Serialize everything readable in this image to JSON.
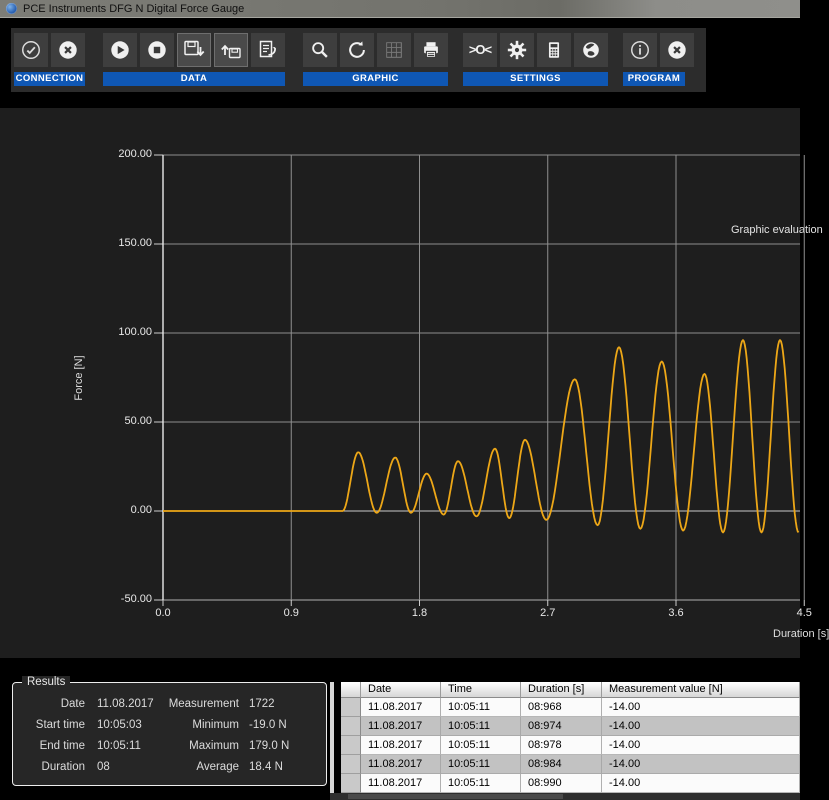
{
  "window": {
    "title": "PCE Instruments DFG N Digital Force Gauge",
    "app_icon": "app-icon"
  },
  "toolbar": {
    "accent_color": "#0f57b4",
    "groups": [
      {
        "label": "CONNECTION",
        "buttons": [
          {
            "name": "connect-button",
            "icon": "check-circle-icon"
          },
          {
            "name": "disconnect-button",
            "icon": "x-circle-icon"
          }
        ]
      },
      {
        "label": "DATA",
        "buttons": [
          {
            "name": "start-measurement-button",
            "icon": "play-circle-icon"
          },
          {
            "name": "stop-measurement-button",
            "icon": "stop-circle-icon"
          },
          {
            "name": "save-data-button",
            "icon": "save-floppy-down-icon",
            "active": true
          },
          {
            "name": "load-data-button",
            "icon": "load-floppy-up-icon",
            "active": true
          },
          {
            "name": "report-button",
            "icon": "document-export-icon"
          }
        ]
      },
      {
        "label": "GRAPHIC",
        "buttons": [
          {
            "name": "zoom-button",
            "icon": "magnifier-icon"
          },
          {
            "name": "refresh-button",
            "icon": "recycle-icon"
          },
          {
            "name": "grid-toggle-button",
            "icon": "grid-icon",
            "disabled": true
          },
          {
            "name": "print-button",
            "icon": "printer-icon"
          }
        ]
      },
      {
        "label": "SETTINGS",
        "buttons": [
          {
            "name": "zero-adjust-button",
            "icon": "zero-adjust-icon"
          },
          {
            "name": "settings-button",
            "icon": "gear-icon"
          },
          {
            "name": "calculator-button",
            "icon": "calculator-icon"
          },
          {
            "name": "language-button",
            "icon": "globe-icon"
          }
        ]
      },
      {
        "label": "PROGRAM",
        "buttons": [
          {
            "name": "info-button",
            "icon": "info-circle-icon"
          },
          {
            "name": "exit-button",
            "icon": "x-circle-icon"
          }
        ]
      }
    ]
  },
  "chart": {
    "corner_label": "Graphic evaluation",
    "line_color": "#eda717",
    "zero_line_color": "#c9c9c9",
    "grid_color": "#8f8f8f"
  },
  "chart_data": {
    "type": "line",
    "title": "Graphic evaluation",
    "xlabel": "Duration [s]",
    "ylabel": "Force [N]",
    "xlim": [
      0.0,
      4.45
    ],
    "ylim": [
      -50,
      200
    ],
    "x_ticks": [
      0.0,
      0.9,
      1.8,
      2.7,
      3.6,
      4.5
    ],
    "y_ticks": [
      200,
      150,
      100,
      50,
      0,
      -50
    ],
    "grid": true,
    "series": [
      {
        "name": "Force",
        "color": "#eda717",
        "extrema_points": [
          [
            0.0,
            0
          ],
          [
            1.26,
            0
          ],
          [
            1.37,
            33
          ],
          [
            1.5,
            -1
          ],
          [
            1.63,
            30
          ],
          [
            1.74,
            -1
          ],
          [
            1.85,
            21
          ],
          [
            1.97,
            -2
          ],
          [
            2.07,
            28
          ],
          [
            2.2,
            -3
          ],
          [
            2.33,
            35
          ],
          [
            2.43,
            -4
          ],
          [
            2.54,
            40
          ],
          [
            2.69,
            -5
          ],
          [
            2.89,
            74
          ],
          [
            3.05,
            -8
          ],
          [
            3.2,
            92
          ],
          [
            3.35,
            -10
          ],
          [
            3.5,
            84
          ],
          [
            3.65,
            -11
          ],
          [
            3.8,
            77
          ],
          [
            3.93,
            -12
          ],
          [
            4.07,
            96
          ],
          [
            4.2,
            -12
          ],
          [
            4.33,
            96
          ],
          [
            4.46,
            -12
          ]
        ]
      }
    ]
  },
  "results": {
    "title": "Results",
    "left": [
      {
        "label": "Date",
        "value": "11.08.2017"
      },
      {
        "label": "Start time",
        "value": "10:05:03"
      },
      {
        "label": "End time",
        "value": "10:05:11"
      },
      {
        "label": "Duration",
        "value": "08"
      }
    ],
    "right": [
      {
        "label": "Measurement",
        "value": "1722"
      },
      {
        "label": "Minimum",
        "value": "-19.0 N"
      },
      {
        "label": "Maximum",
        "value": "179.0 N"
      },
      {
        "label": "Average",
        "value": "18.4 N"
      }
    ]
  },
  "table": {
    "columns": [
      "Date",
      "Time",
      "Duration [s]",
      "Measurement value [N]"
    ],
    "rows": [
      [
        "11.08.2017",
        "10:05:11",
        "08:968",
        "-14.00"
      ],
      [
        "11.08.2017",
        "10:05:11",
        "08:974",
        "-14.00"
      ],
      [
        "11.08.2017",
        "10:05:11",
        "08:978",
        "-14.00"
      ],
      [
        "11.08.2017",
        "10:05:11",
        "08:984",
        "-14.00"
      ],
      [
        "11.08.2017",
        "10:05:11",
        "08:990",
        "-14.00"
      ]
    ]
  }
}
